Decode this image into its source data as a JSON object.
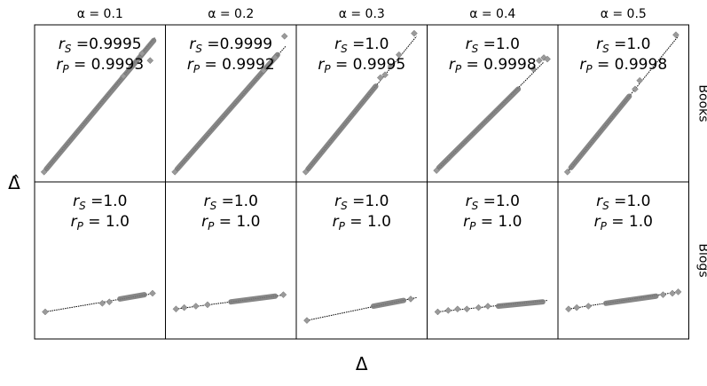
{
  "chart_data": {
    "type": "scatter",
    "x_label": "Δ",
    "y_label": "Δ̂",
    "columns": [
      "α = 0.1",
      "α = 0.2",
      "α = 0.3",
      "α = 0.4",
      "α = 0.5"
    ],
    "rows": [
      "Books",
      "Blogs"
    ],
    "grid": false,
    "panels": [
      {
        "row": "Books",
        "col": "α = 0.1",
        "r_s": "0.9995",
        "r_p": "0.9993",
        "line": [
          [
            0.03,
            0.03
          ],
          [
            0.97,
            0.96
          ]
        ],
        "dense": [
          [
            0.04,
            0.04
          ],
          [
            0.96,
            0.94
          ]
        ],
        "outliers": [
          [
            0.93,
            0.8
          ],
          [
            0.86,
            0.85
          ],
          [
            0.7,
            0.69
          ],
          [
            0.02,
            0.02
          ]
        ]
      },
      {
        "row": "Books",
        "col": "α = 0.2",
        "r_s": "0.9999",
        "r_p": "0.9992",
        "line": [
          [
            0.03,
            0.03
          ],
          [
            0.97,
            0.9
          ]
        ],
        "dense": [
          [
            0.04,
            0.04
          ],
          [
            0.9,
            0.84
          ]
        ],
        "outliers": [
          [
            0.96,
            0.97
          ],
          [
            0.88,
            0.82
          ],
          [
            0.78,
            0.73
          ],
          [
            0.02,
            0.02
          ]
        ]
      },
      {
        "row": "Books",
        "col": "α = 0.3",
        "r_s": "1.0",
        "r_p": "0.9995",
        "line": [
          [
            0.03,
            0.03
          ],
          [
            0.97,
            0.97
          ]
        ],
        "dense": [
          [
            0.04,
            0.04
          ],
          [
            0.62,
            0.62
          ]
        ],
        "outliers": [
          [
            0.95,
            0.99
          ],
          [
            0.82,
            0.84
          ],
          [
            0.75,
            0.76
          ],
          [
            0.7,
            0.7
          ],
          [
            0.66,
            0.68
          ],
          [
            0.02,
            0.02
          ]
        ]
      },
      {
        "row": "Books",
        "col": "α = 0.4",
        "r_s": "1.0",
        "r_p": "0.9998",
        "line": [
          [
            0.03,
            0.04
          ],
          [
            0.94,
            0.79
          ]
        ],
        "dense": [
          [
            0.04,
            0.05
          ],
          [
            0.72,
            0.6
          ]
        ],
        "outliers": [
          [
            0.9,
            0.8
          ],
          [
            0.94,
            0.82
          ],
          [
            0.97,
            0.81
          ],
          [
            0.85,
            0.74
          ],
          [
            0.02,
            0.03
          ]
        ]
      },
      {
        "row": "Books",
        "col": "α = 0.5",
        "r_s": "1.0",
        "r_p": "0.9998",
        "line": [
          [
            0.03,
            0.03
          ],
          [
            0.97,
            0.97
          ]
        ],
        "dense": [
          [
            0.05,
            0.05
          ],
          [
            0.55,
            0.55
          ]
        ],
        "outliers": [
          [
            0.95,
            0.98
          ],
          [
            0.64,
            0.66
          ],
          [
            0.6,
            0.6
          ],
          [
            0.02,
            0.02
          ]
        ]
      },
      {
        "row": "Blogs",
        "col": "α = 0.1",
        "r_s": "1.0",
        "r_p": "1.0",
        "line": [
          [
            0.03,
            0.14
          ],
          [
            0.97,
            0.27
          ]
        ],
        "dense": [
          [
            0.67,
            0.23
          ],
          [
            0.88,
            0.26
          ]
        ],
        "outliers": [
          [
            0.52,
            0.2
          ],
          [
            0.58,
            0.21
          ],
          [
            0.95,
            0.27
          ],
          [
            0.03,
            0.14
          ]
        ]
      },
      {
        "row": "Blogs",
        "col": "α = 0.2",
        "r_s": "1.0",
        "r_p": "1.0",
        "line": [
          [
            0.03,
            0.16
          ],
          [
            0.97,
            0.26
          ]
        ],
        "dense": [
          [
            0.5,
            0.21
          ],
          [
            0.88,
            0.25
          ]
        ],
        "outliers": [
          [
            0.1,
            0.17
          ],
          [
            0.2,
            0.18
          ],
          [
            0.3,
            0.19
          ],
          [
            0.95,
            0.26
          ],
          [
            0.03,
            0.16
          ]
        ]
      },
      {
        "row": "Blogs",
        "col": "α = 0.3",
        "r_s": "1.0",
        "r_p": "1.0",
        "line": [
          [
            0.03,
            0.08
          ],
          [
            0.97,
            0.24
          ]
        ],
        "dense": [
          [
            0.6,
            0.18
          ],
          [
            0.86,
            0.22
          ]
        ],
        "outliers": [
          [
            0.92,
            0.23
          ],
          [
            0.03,
            0.08
          ]
        ]
      },
      {
        "row": "Blogs",
        "col": "α = 0.4",
        "r_s": "1.0",
        "r_p": "1.0",
        "line": [
          [
            0.03,
            0.14
          ],
          [
            0.97,
            0.22
          ]
        ],
        "dense": [
          [
            0.55,
            0.18
          ],
          [
            0.93,
            0.21
          ]
        ],
        "outliers": [
          [
            0.03,
            0.14
          ],
          [
            0.12,
            0.15
          ],
          [
            0.2,
            0.16
          ],
          [
            0.28,
            0.16
          ],
          [
            0.38,
            0.17
          ],
          [
            0.46,
            0.18
          ]
        ]
      },
      {
        "row": "Blogs",
        "col": "α = 0.5",
        "r_s": "1.0",
        "r_p": "1.0",
        "line": [
          [
            0.03,
            0.16
          ],
          [
            0.97,
            0.28
          ]
        ],
        "dense": [
          [
            0.35,
            0.2
          ],
          [
            0.78,
            0.25
          ]
        ],
        "outliers": [
          [
            0.1,
            0.17
          ],
          [
            0.2,
            0.18
          ],
          [
            0.84,
            0.26
          ],
          [
            0.92,
            0.27
          ],
          [
            0.97,
            0.28
          ],
          [
            0.03,
            0.16
          ]
        ]
      }
    ]
  }
}
